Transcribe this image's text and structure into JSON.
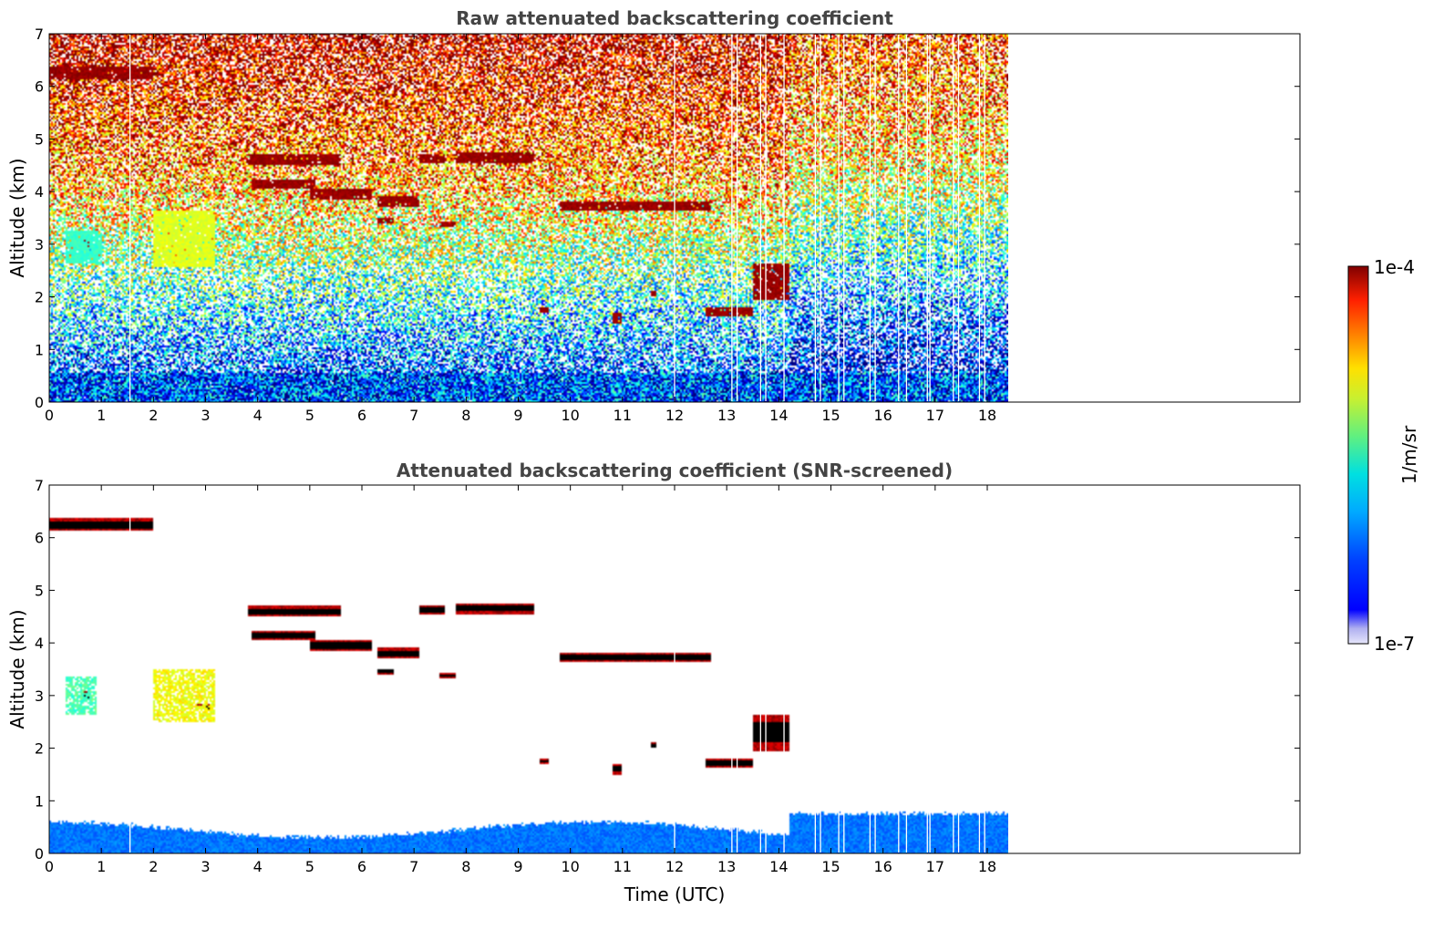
{
  "chart_data": [
    {
      "type": "heatmap",
      "title": "Raw attenuated backscattering coefficient",
      "xlabel": "",
      "ylabel": "Altitude (km)",
      "xlim": [
        0,
        24
      ],
      "ylim": [
        0,
        7
      ],
      "x_ticks": [
        0,
        1,
        2,
        3,
        4,
        5,
        6,
        7,
        8,
        9,
        10,
        11,
        12,
        13,
        14,
        15,
        16,
        17,
        18
      ],
      "y_ticks": [
        0,
        1,
        2,
        3,
        4,
        5,
        6,
        7
      ],
      "data_extent_time": [
        0,
        18.4
      ],
      "screened": false,
      "gaps": [
        1.55,
        12.0,
        13.1,
        13.2,
        13.65,
        13.75,
        14.1,
        14.7,
        14.8,
        15.15,
        15.25,
        15.75,
        15.85,
        16.3,
        16.45,
        16.85,
        16.9,
        17.35,
        17.45,
        17.85,
        17.95
      ],
      "layers": [
        {
          "t0": 0.0,
          "t1": 2.0,
          "z": 6.25,
          "dz": 0.12,
          "level": 1.0
        },
        {
          "t0": 3.8,
          "t1": 5.6,
          "z": 4.6,
          "dz": 0.1,
          "level": 1.0
        },
        {
          "t0": 7.1,
          "t1": 7.6,
          "z": 4.62,
          "dz": 0.08,
          "level": 1.0
        },
        {
          "t0": 7.8,
          "t1": 9.3,
          "z": 4.65,
          "dz": 0.1,
          "level": 1.0
        },
        {
          "t0": 3.9,
          "t1": 5.1,
          "z": 4.15,
          "dz": 0.08,
          "level": 1.0
        },
        {
          "t0": 5.0,
          "t1": 6.2,
          "z": 3.95,
          "dz": 0.1,
          "level": 1.0
        },
        {
          "t0": 6.3,
          "t1": 7.1,
          "z": 3.8,
          "dz": 0.1,
          "level": 1.0
        },
        {
          "t0": 6.3,
          "t1": 6.6,
          "z": 3.45,
          "dz": 0.06,
          "level": 1.0
        },
        {
          "t0": 7.5,
          "t1": 7.8,
          "z": 3.38,
          "dz": 0.06,
          "level": 1.0
        },
        {
          "t0": 9.8,
          "t1": 12.7,
          "z": 3.72,
          "dz": 0.08,
          "level": 1.0
        },
        {
          "t0": 12.6,
          "t1": 13.5,
          "z": 1.72,
          "dz": 0.08,
          "level": 1.0
        },
        {
          "t0": 13.5,
          "t1": 14.2,
          "z": 2.3,
          "dz": 0.35,
          "level": 1.0
        },
        {
          "t0": 0.65,
          "t1": 0.78,
          "z": 3.0,
          "dz": 0.1,
          "level": 1.0
        },
        {
          "t0": 2.8,
          "t1": 3.1,
          "z": 2.78,
          "dz": 0.05,
          "level": 1.0
        },
        {
          "t0": 10.8,
          "t1": 11.0,
          "z": 1.6,
          "dz": 0.1,
          "level": 1.0
        },
        {
          "t0": 9.4,
          "t1": 9.6,
          "z": 1.75,
          "dz": 0.05,
          "level": 1.0
        },
        {
          "t0": 11.55,
          "t1": 11.65,
          "z": 2.05,
          "dz": 0.05,
          "level": 1.0
        },
        {
          "t0": 2.0,
          "t1": 3.2,
          "z": 3.1,
          "dz": 0.55,
          "level": 0.62
        },
        {
          "t0": 0.3,
          "t1": 1.0,
          "z": 2.95,
          "dz": 0.3,
          "level": 0.45
        }
      ]
    },
    {
      "type": "heatmap",
      "title": "Attenuated backscattering coefficient (SNR-screened)",
      "xlabel": "Time (UTC)",
      "ylabel": "Altitude (km)",
      "xlim": [
        0,
        24
      ],
      "ylim": [
        0,
        7
      ],
      "x_ticks": [
        0,
        1,
        2,
        3,
        4,
        5,
        6,
        7,
        8,
        9,
        10,
        11,
        12,
        13,
        14,
        15,
        16,
        17,
        18
      ],
      "y_ticks": [
        0,
        1,
        2,
        3,
        4,
        5,
        6,
        7
      ],
      "data_extent_time": [
        0,
        18.4
      ],
      "screened": true,
      "gaps": [
        1.55,
        12.0,
        13.1,
        13.2,
        13.65,
        13.75,
        14.1,
        14.7,
        14.8,
        15.15,
        15.25,
        15.75,
        15.85,
        16.3,
        16.45,
        16.85,
        16.9,
        17.35,
        17.45,
        17.85,
        17.95
      ],
      "layers": [
        {
          "t0": 0.0,
          "t1": 2.0,
          "z": 6.25,
          "dz": 0.12,
          "level": 1.0
        },
        {
          "t0": 3.8,
          "t1": 5.6,
          "z": 4.6,
          "dz": 0.1,
          "level": 1.0
        },
        {
          "t0": 7.1,
          "t1": 7.6,
          "z": 4.62,
          "dz": 0.08,
          "level": 1.0
        },
        {
          "t0": 7.8,
          "t1": 9.3,
          "z": 4.65,
          "dz": 0.1,
          "level": 1.0
        },
        {
          "t0": 3.9,
          "t1": 5.1,
          "z": 4.15,
          "dz": 0.08,
          "level": 1.0
        },
        {
          "t0": 5.0,
          "t1": 6.2,
          "z": 3.95,
          "dz": 0.1,
          "level": 1.0
        },
        {
          "t0": 6.3,
          "t1": 7.1,
          "z": 3.8,
          "dz": 0.1,
          "level": 1.0
        },
        {
          "t0": 6.3,
          "t1": 6.6,
          "z": 3.45,
          "dz": 0.06,
          "level": 1.0
        },
        {
          "t0": 7.5,
          "t1": 7.8,
          "z": 3.38,
          "dz": 0.06,
          "level": 1.0
        },
        {
          "t0": 9.8,
          "t1": 12.7,
          "z": 3.72,
          "dz": 0.08,
          "level": 1.0
        },
        {
          "t0": 12.6,
          "t1": 13.5,
          "z": 1.72,
          "dz": 0.08,
          "level": 1.0
        },
        {
          "t0": 13.5,
          "t1": 14.2,
          "z": 2.3,
          "dz": 0.35,
          "level": 1.0
        },
        {
          "t0": 0.65,
          "t1": 0.78,
          "z": 3.0,
          "dz": 0.1,
          "level": 1.0
        },
        {
          "t0": 2.8,
          "t1": 3.1,
          "z": 2.78,
          "dz": 0.05,
          "level": 1.0
        },
        {
          "t0": 10.8,
          "t1": 11.0,
          "z": 1.6,
          "dz": 0.1,
          "level": 1.0
        },
        {
          "t0": 9.4,
          "t1": 9.6,
          "z": 1.75,
          "dz": 0.05,
          "level": 1.0
        },
        {
          "t0": 11.55,
          "t1": 11.65,
          "z": 2.05,
          "dz": 0.05,
          "level": 1.0
        },
        {
          "t0": 2.0,
          "t1": 3.2,
          "z": 3.0,
          "dz": 0.5,
          "level": 0.62
        },
        {
          "t0": 0.3,
          "t1": 0.9,
          "z": 3.0,
          "dz": 0.35,
          "level": 0.45
        }
      ]
    }
  ],
  "colorbar": {
    "label": "1/m/sr",
    "max_label": "1e-4",
    "min_label": "1e-7",
    "scale": "log",
    "colormap": "jet",
    "range": [
      1e-07,
      0.0001
    ]
  },
  "colors": {
    "screened_layer_core": "#000000",
    "gap_line": "#ffffff"
  }
}
